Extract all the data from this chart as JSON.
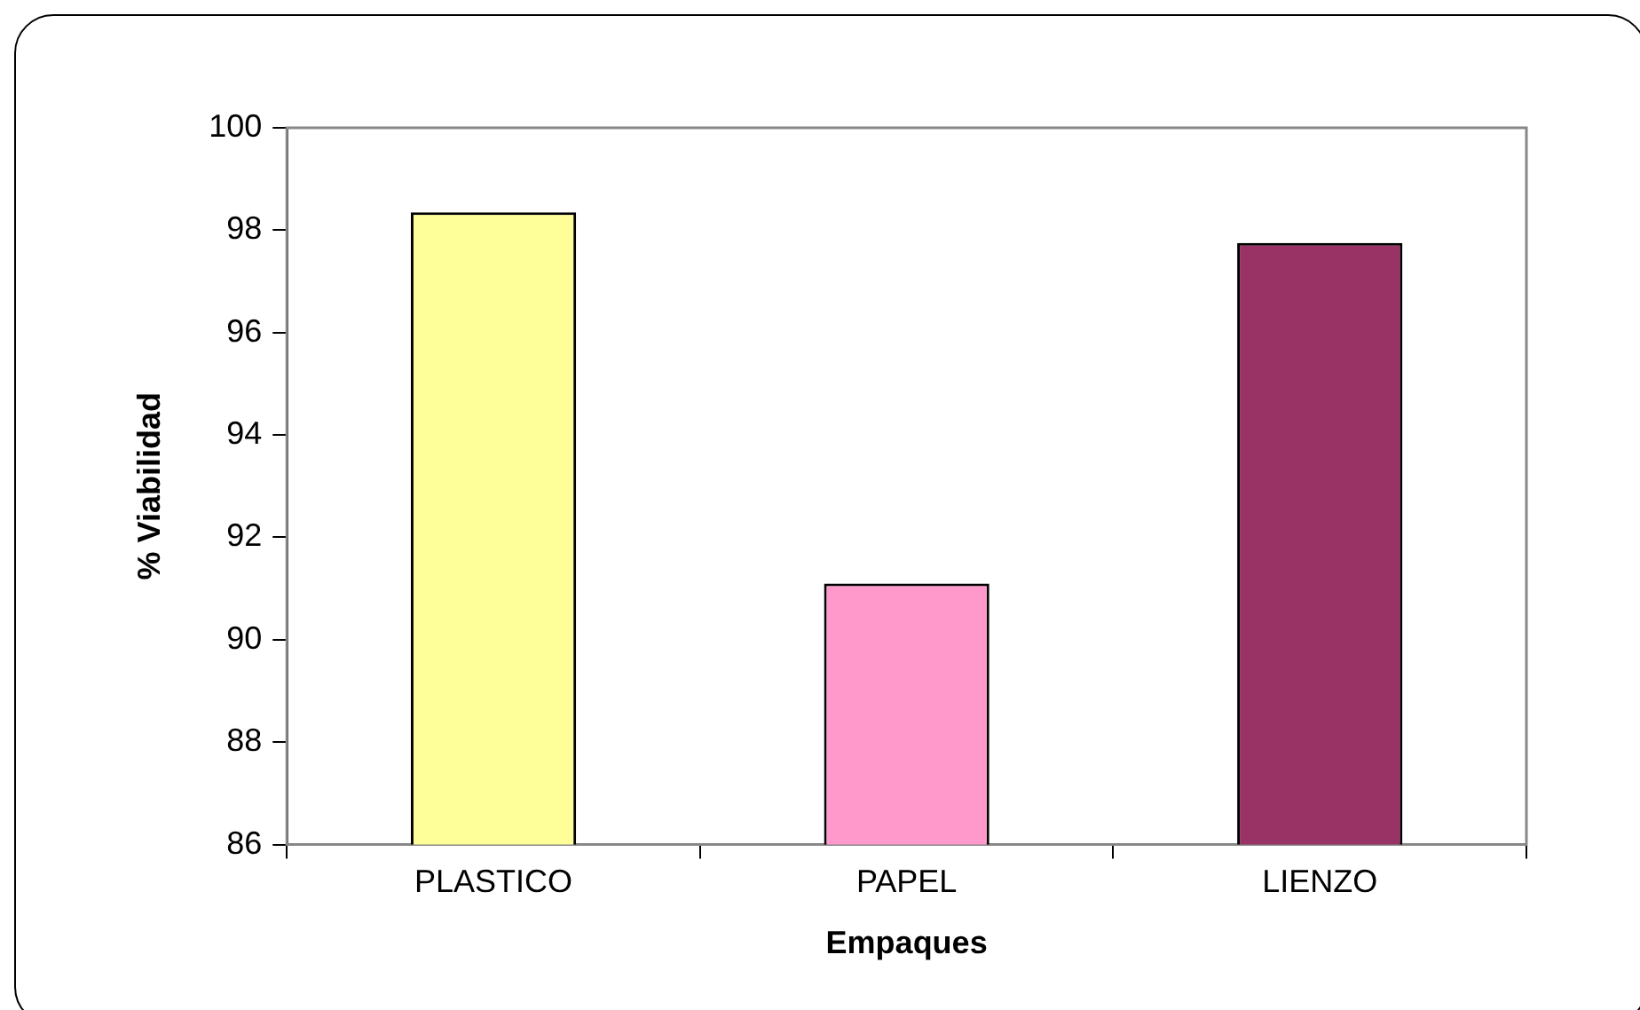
{
  "chart_data": {
    "type": "bar",
    "xlabel": "Empaques",
    "ylabel": "% Viabilidad",
    "categories": [
      "PLASTICO",
      "PAPEL",
      "LIENZO"
    ],
    "values": [
      98.35,
      91.1,
      97.75
    ],
    "colors": [
      "#ffff99",
      "#ff99cc",
      "#993366"
    ],
    "ylim": [
      86,
      100
    ],
    "yticks": [
      86,
      88,
      90,
      92,
      94,
      96,
      98,
      100
    ],
    "grid": false
  }
}
